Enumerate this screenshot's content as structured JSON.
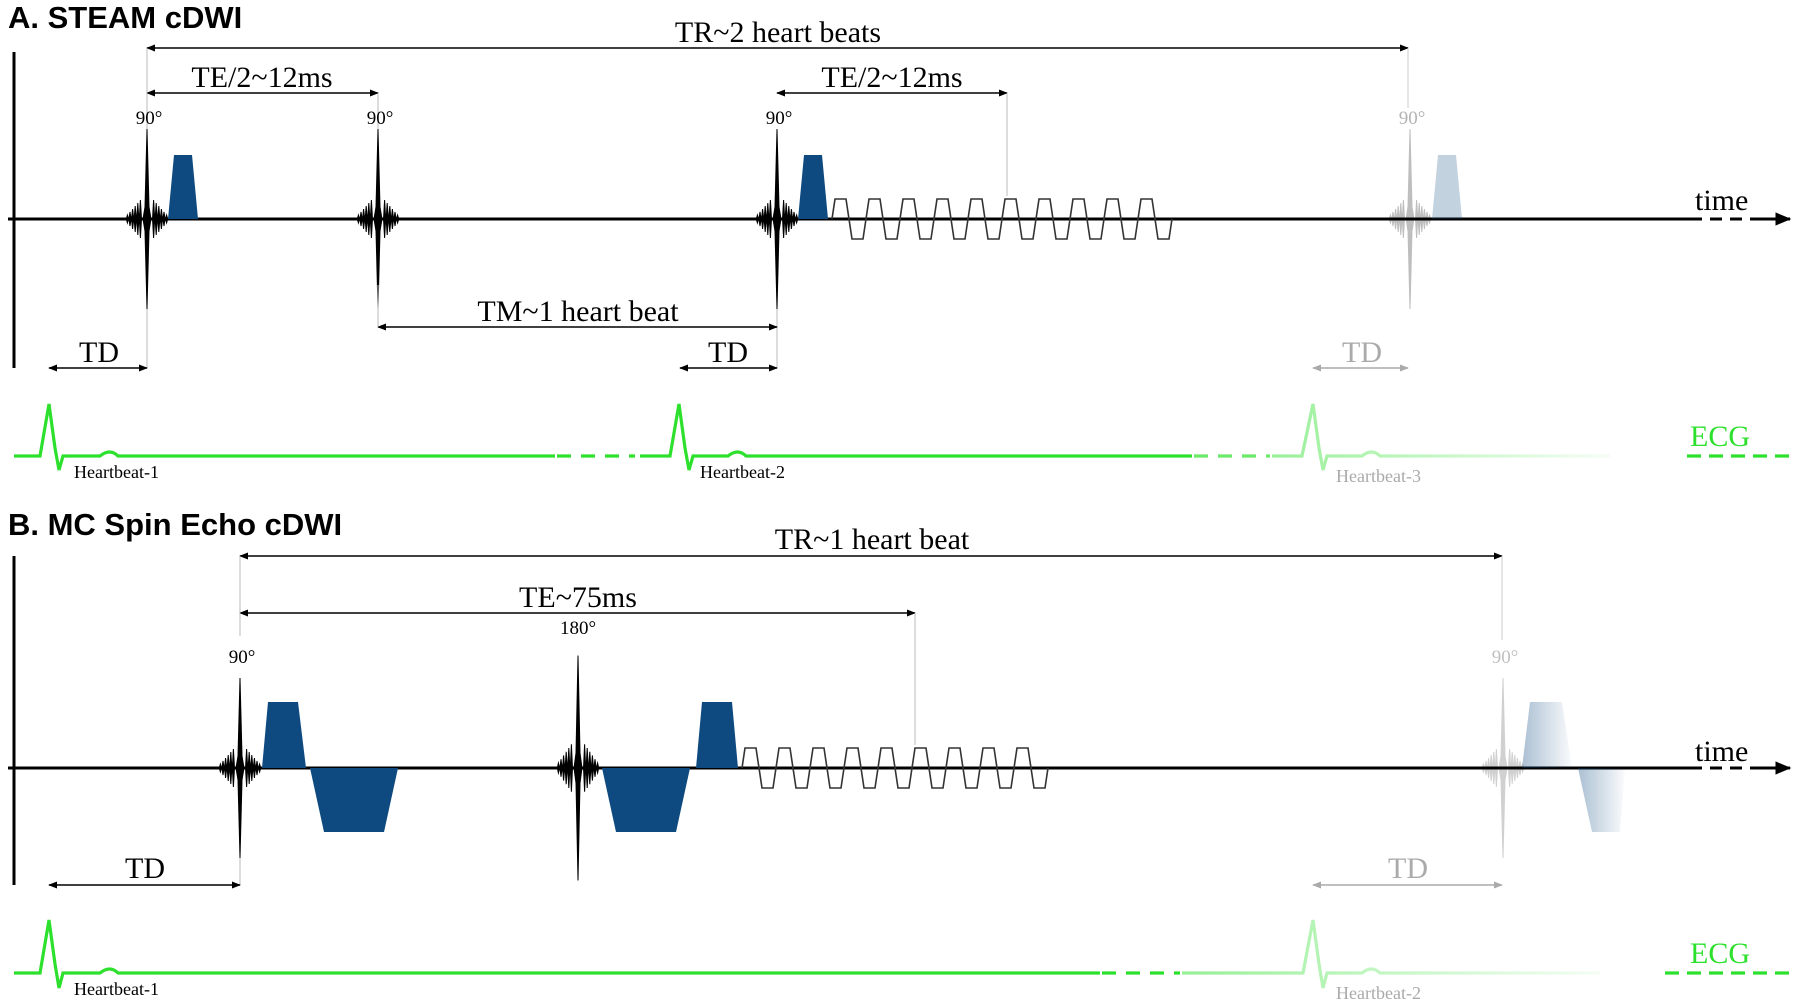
{
  "colors": {
    "ecg": "#2de02d",
    "gradient": "#0e4a80",
    "rf": "#000000",
    "faded_opacity": 0.28
  },
  "panel_a": {
    "title": "A.  STEAM cDWI",
    "tr_label": "TR~2 heart beats",
    "te_label_1": "TE/2~12ms",
    "te_label_2": "TE/2~12ms",
    "tm_label": "TM~1 heart beat",
    "td_label_1": "TD",
    "td_label_2": "TD",
    "td_label_3": "TD",
    "flip_1": "90°",
    "flip_2": "90°",
    "flip_3": "90°",
    "flip_4": "90°",
    "time_label": "time",
    "ecg_label": "ECG",
    "heartbeat_1": "Heartbeat-1",
    "heartbeat_2": "Heartbeat-2",
    "heartbeat_3": "Heartbeat-3"
  },
  "panel_b": {
    "title": "B.  MC Spin Echo cDWI",
    "tr_label": "TR~1 heart beat",
    "te_label": "TE~75ms",
    "td_label_1": "TD",
    "td_label_2": "TD",
    "flip_1": "90°",
    "flip_2": "180°",
    "flip_3": "90°",
    "time_label": "time",
    "ecg_label": "ECG",
    "heartbeat_1": "Heartbeat-1",
    "heartbeat_2": "Heartbeat-2"
  }
}
